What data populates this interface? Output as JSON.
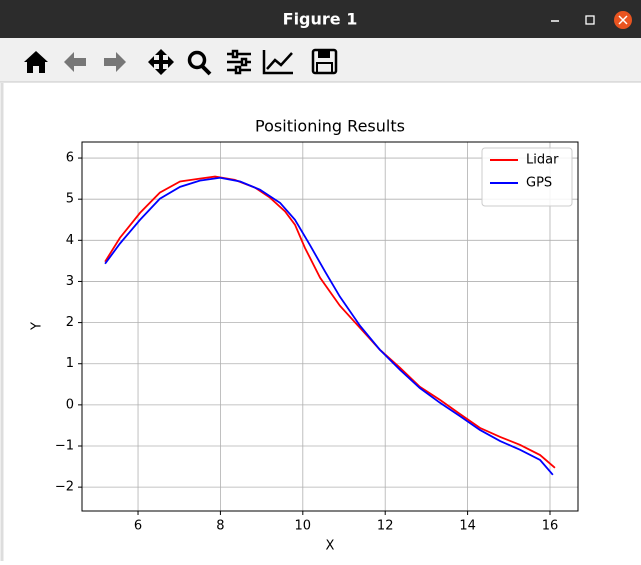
{
  "window": {
    "title": "Figure 1"
  },
  "chart_data": {
    "type": "line",
    "title": "Positioning Results",
    "x_label": "X",
    "y_label": "Y",
    "xlim": [
      4.64,
      16.68
    ],
    "ylim": [
      -2.58,
      6.39
    ],
    "xticks": [
      6,
      8,
      10,
      12,
      14,
      16
    ],
    "yticks": [
      {
        "value": -2,
        "label": "−2"
      },
      {
        "value": -1,
        "label": "−1"
      },
      0,
      1,
      2,
      3,
      4,
      5,
      6
    ],
    "grid": true,
    "legend": "upper right",
    "series": [
      {
        "name": "Lidar",
        "color": "#ff0000",
        "x": [
          5.2,
          5.56,
          6.05,
          6.53,
          7.02,
          7.5,
          7.87,
          8.35,
          8.84,
          9.2,
          9.57,
          9.81,
          10.05,
          10.42,
          10.9,
          11.39,
          11.87,
          12.36,
          12.84,
          13.33,
          13.81,
          14.3,
          14.79,
          15.27,
          15.76,
          16.12
        ],
        "values": [
          3.48,
          4.06,
          4.67,
          5.16,
          5.43,
          5.5,
          5.55,
          5.47,
          5.28,
          5.04,
          4.7,
          4.38,
          3.82,
          3.09,
          2.41,
          1.87,
          1.34,
          0.9,
          0.44,
          0.12,
          -0.22,
          -0.56,
          -0.78,
          -0.97,
          -1.22,
          -1.53
        ]
      },
      {
        "name": "GPS",
        "color": "#0000ff",
        "x": [
          5.2,
          5.56,
          6.05,
          6.53,
          7.02,
          7.5,
          7.99,
          8.48,
          8.96,
          9.45,
          9.81,
          10.17,
          10.54,
          10.9,
          11.39,
          11.87,
          12.36,
          12.84,
          13.33,
          13.81,
          14.3,
          14.79,
          15.27,
          15.76,
          16.07
        ],
        "values": [
          3.43,
          3.92,
          4.5,
          5.01,
          5.3,
          5.45,
          5.52,
          5.43,
          5.23,
          4.91,
          4.5,
          3.89,
          3.24,
          2.63,
          1.92,
          1.34,
          0.85,
          0.41,
          0.05,
          -0.27,
          -0.61,
          -0.88,
          -1.09,
          -1.34,
          -1.7
        ]
      }
    ]
  }
}
